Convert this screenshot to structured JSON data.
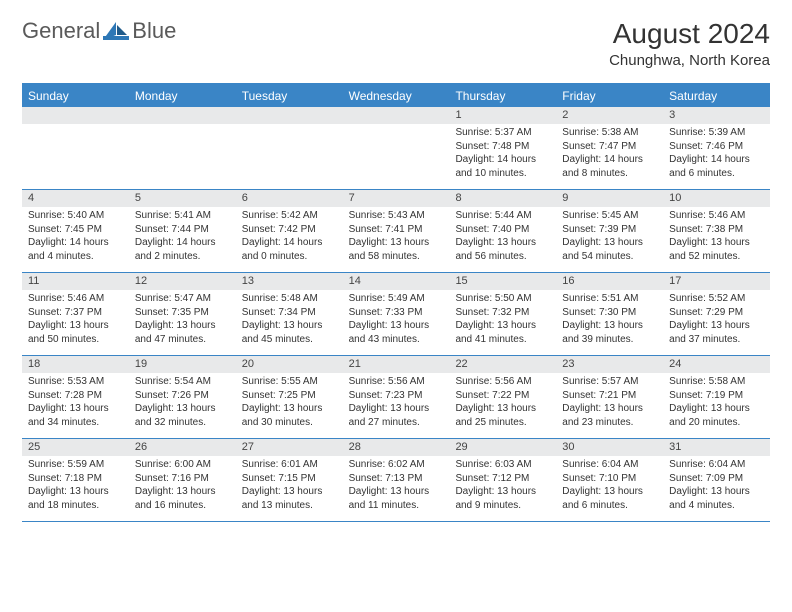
{
  "branding": {
    "logo_general": "General",
    "logo_blue": "Blue"
  },
  "header": {
    "title": "August 2024",
    "location": "Chunghwa, North Korea"
  },
  "style": {
    "accent_color": "#3a85c6",
    "header_text_color": "#ffffff",
    "daynum_bg": "#e8e9ea",
    "body_text_color": "#333333",
    "background_color": "#ffffff",
    "title_fontsize": 28,
    "subtitle_fontsize": 15,
    "dayheader_fontsize": 12,
    "cell_fontsize": 10
  },
  "day_names": [
    "Sunday",
    "Monday",
    "Tuesday",
    "Wednesday",
    "Thursday",
    "Friday",
    "Saturday"
  ],
  "weeks": [
    [
      {
        "num": "",
        "sunrise": "",
        "sunset": "",
        "daylight1": "",
        "daylight2": ""
      },
      {
        "num": "",
        "sunrise": "",
        "sunset": "",
        "daylight1": "",
        "daylight2": ""
      },
      {
        "num": "",
        "sunrise": "",
        "sunset": "",
        "daylight1": "",
        "daylight2": ""
      },
      {
        "num": "",
        "sunrise": "",
        "sunset": "",
        "daylight1": "",
        "daylight2": ""
      },
      {
        "num": "1",
        "sunrise": "Sunrise: 5:37 AM",
        "sunset": "Sunset: 7:48 PM",
        "daylight1": "Daylight: 14 hours",
        "daylight2": "and 10 minutes."
      },
      {
        "num": "2",
        "sunrise": "Sunrise: 5:38 AM",
        "sunset": "Sunset: 7:47 PM",
        "daylight1": "Daylight: 14 hours",
        "daylight2": "and 8 minutes."
      },
      {
        "num": "3",
        "sunrise": "Sunrise: 5:39 AM",
        "sunset": "Sunset: 7:46 PM",
        "daylight1": "Daylight: 14 hours",
        "daylight2": "and 6 minutes."
      }
    ],
    [
      {
        "num": "4",
        "sunrise": "Sunrise: 5:40 AM",
        "sunset": "Sunset: 7:45 PM",
        "daylight1": "Daylight: 14 hours",
        "daylight2": "and 4 minutes."
      },
      {
        "num": "5",
        "sunrise": "Sunrise: 5:41 AM",
        "sunset": "Sunset: 7:44 PM",
        "daylight1": "Daylight: 14 hours",
        "daylight2": "and 2 minutes."
      },
      {
        "num": "6",
        "sunrise": "Sunrise: 5:42 AM",
        "sunset": "Sunset: 7:42 PM",
        "daylight1": "Daylight: 14 hours",
        "daylight2": "and 0 minutes."
      },
      {
        "num": "7",
        "sunrise": "Sunrise: 5:43 AM",
        "sunset": "Sunset: 7:41 PM",
        "daylight1": "Daylight: 13 hours",
        "daylight2": "and 58 minutes."
      },
      {
        "num": "8",
        "sunrise": "Sunrise: 5:44 AM",
        "sunset": "Sunset: 7:40 PM",
        "daylight1": "Daylight: 13 hours",
        "daylight2": "and 56 minutes."
      },
      {
        "num": "9",
        "sunrise": "Sunrise: 5:45 AM",
        "sunset": "Sunset: 7:39 PM",
        "daylight1": "Daylight: 13 hours",
        "daylight2": "and 54 minutes."
      },
      {
        "num": "10",
        "sunrise": "Sunrise: 5:46 AM",
        "sunset": "Sunset: 7:38 PM",
        "daylight1": "Daylight: 13 hours",
        "daylight2": "and 52 minutes."
      }
    ],
    [
      {
        "num": "11",
        "sunrise": "Sunrise: 5:46 AM",
        "sunset": "Sunset: 7:37 PM",
        "daylight1": "Daylight: 13 hours",
        "daylight2": "and 50 minutes."
      },
      {
        "num": "12",
        "sunrise": "Sunrise: 5:47 AM",
        "sunset": "Sunset: 7:35 PM",
        "daylight1": "Daylight: 13 hours",
        "daylight2": "and 47 minutes."
      },
      {
        "num": "13",
        "sunrise": "Sunrise: 5:48 AM",
        "sunset": "Sunset: 7:34 PM",
        "daylight1": "Daylight: 13 hours",
        "daylight2": "and 45 minutes."
      },
      {
        "num": "14",
        "sunrise": "Sunrise: 5:49 AM",
        "sunset": "Sunset: 7:33 PM",
        "daylight1": "Daylight: 13 hours",
        "daylight2": "and 43 minutes."
      },
      {
        "num": "15",
        "sunrise": "Sunrise: 5:50 AM",
        "sunset": "Sunset: 7:32 PM",
        "daylight1": "Daylight: 13 hours",
        "daylight2": "and 41 minutes."
      },
      {
        "num": "16",
        "sunrise": "Sunrise: 5:51 AM",
        "sunset": "Sunset: 7:30 PM",
        "daylight1": "Daylight: 13 hours",
        "daylight2": "and 39 minutes."
      },
      {
        "num": "17",
        "sunrise": "Sunrise: 5:52 AM",
        "sunset": "Sunset: 7:29 PM",
        "daylight1": "Daylight: 13 hours",
        "daylight2": "and 37 minutes."
      }
    ],
    [
      {
        "num": "18",
        "sunrise": "Sunrise: 5:53 AM",
        "sunset": "Sunset: 7:28 PM",
        "daylight1": "Daylight: 13 hours",
        "daylight2": "and 34 minutes."
      },
      {
        "num": "19",
        "sunrise": "Sunrise: 5:54 AM",
        "sunset": "Sunset: 7:26 PM",
        "daylight1": "Daylight: 13 hours",
        "daylight2": "and 32 minutes."
      },
      {
        "num": "20",
        "sunrise": "Sunrise: 5:55 AM",
        "sunset": "Sunset: 7:25 PM",
        "daylight1": "Daylight: 13 hours",
        "daylight2": "and 30 minutes."
      },
      {
        "num": "21",
        "sunrise": "Sunrise: 5:56 AM",
        "sunset": "Sunset: 7:23 PM",
        "daylight1": "Daylight: 13 hours",
        "daylight2": "and 27 minutes."
      },
      {
        "num": "22",
        "sunrise": "Sunrise: 5:56 AM",
        "sunset": "Sunset: 7:22 PM",
        "daylight1": "Daylight: 13 hours",
        "daylight2": "and 25 minutes."
      },
      {
        "num": "23",
        "sunrise": "Sunrise: 5:57 AM",
        "sunset": "Sunset: 7:21 PM",
        "daylight1": "Daylight: 13 hours",
        "daylight2": "and 23 minutes."
      },
      {
        "num": "24",
        "sunrise": "Sunrise: 5:58 AM",
        "sunset": "Sunset: 7:19 PM",
        "daylight1": "Daylight: 13 hours",
        "daylight2": "and 20 minutes."
      }
    ],
    [
      {
        "num": "25",
        "sunrise": "Sunrise: 5:59 AM",
        "sunset": "Sunset: 7:18 PM",
        "daylight1": "Daylight: 13 hours",
        "daylight2": "and 18 minutes."
      },
      {
        "num": "26",
        "sunrise": "Sunrise: 6:00 AM",
        "sunset": "Sunset: 7:16 PM",
        "daylight1": "Daylight: 13 hours",
        "daylight2": "and 16 minutes."
      },
      {
        "num": "27",
        "sunrise": "Sunrise: 6:01 AM",
        "sunset": "Sunset: 7:15 PM",
        "daylight1": "Daylight: 13 hours",
        "daylight2": "and 13 minutes."
      },
      {
        "num": "28",
        "sunrise": "Sunrise: 6:02 AM",
        "sunset": "Sunset: 7:13 PM",
        "daylight1": "Daylight: 13 hours",
        "daylight2": "and 11 minutes."
      },
      {
        "num": "29",
        "sunrise": "Sunrise: 6:03 AM",
        "sunset": "Sunset: 7:12 PM",
        "daylight1": "Daylight: 13 hours",
        "daylight2": "and 9 minutes."
      },
      {
        "num": "30",
        "sunrise": "Sunrise: 6:04 AM",
        "sunset": "Sunset: 7:10 PM",
        "daylight1": "Daylight: 13 hours",
        "daylight2": "and 6 minutes."
      },
      {
        "num": "31",
        "sunrise": "Sunrise: 6:04 AM",
        "sunset": "Sunset: 7:09 PM",
        "daylight1": "Daylight: 13 hours",
        "daylight2": "and 4 minutes."
      }
    ]
  ]
}
